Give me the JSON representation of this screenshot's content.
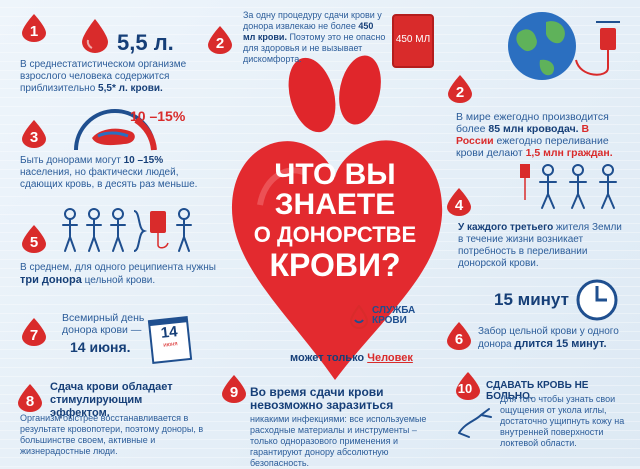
{
  "heart": {
    "title_lines": [
      "ЧТО ВЫ",
      "ЗНАЕТЕ",
      "О ДОНОРСТВЕ",
      "КРОВИ?"
    ],
    "logo_text_1": "СЛУЖБА",
    "logo_text_2": "КРОВИ",
    "tagline_prefix": "может только ",
    "tagline_person": "Человек"
  },
  "facts": {
    "f1": {
      "num": "1",
      "amount": "5,5 л.",
      "text": "В среднестатистическом организме взрослого человека содержится приблизительно ",
      "bold": "5,5* л. крови."
    },
    "f2a": {
      "num": "2",
      "text_1": "За одну процедуру сдачи крови у донора извлекаю не более ",
      "bold": "450 мл крови.",
      "text_2": " Поэтому это не опасно для здоровья и не вызывает дискомфорта.",
      "bag": "450 МЛ"
    },
    "f2b": {
      "num": "2",
      "text_1": "В мире ежегодно производится более ",
      "bold": "85 млн кроводач.",
      "red": " В России",
      "text_2": " ежегодно переливание крови делают ",
      "bold_2": "1,5 млн граждан."
    },
    "f3": {
      "num": "3",
      "percent": "10 –15%",
      "text_1": "Быть донорами могут ",
      "bold": "10 –15%",
      "text_2": " населения, но фактически людей, сдающих кровь, в десять раз меньше."
    },
    "f4": {
      "num": "4",
      "bold": "У каждого третьего",
      "text": " жителя Земли в течение жизни возникает потребность в переливании донорской крови."
    },
    "f5": {
      "num": "5",
      "text_1": "В среднем, для одного реципиента нужны ",
      "bold": "три донора",
      "text_2": " цельной крови."
    },
    "f6": {
      "num": "6",
      "minutes": "15 минут",
      "text": "Забор цельной крови у одного донора ",
      "bold": "длится 15 минут."
    },
    "f7": {
      "num": "7",
      "text": "Всемирный день донора крови —",
      "bold": "14 июня.",
      "calendar": "14",
      "calendar_month": "июня"
    },
    "f8": {
      "num": "8",
      "heading": "Сдача крови обладает стимулирующим эффектом.",
      "text": "Организм быстрее восстанавливается в результате кровопотери, поэтому доноры, в большинстве своем, активные и жизнерадостные люди."
    },
    "f9": {
      "num": "9",
      "heading": "Во время сдачи крови невозможно заразиться",
      "text": "никакими инфекциями: все используемые расходные материалы и инструменты – только одноразового применения и гарантируют донору абсолютную безопасность."
    },
    "f10": {
      "num": "10",
      "heading": "СДАВАТЬ КРОВЬ НЕ БОЛЬНО.",
      "text": "Для того чтобы узнать свои ощущения от укола иглы, достаточно ущипнуть кожу на внутренней поверхности локтевой области."
    }
  },
  "colors": {
    "red": "#d92b2b",
    "blue": "#1f4f8f",
    "bg": "#e9f1f8"
  }
}
